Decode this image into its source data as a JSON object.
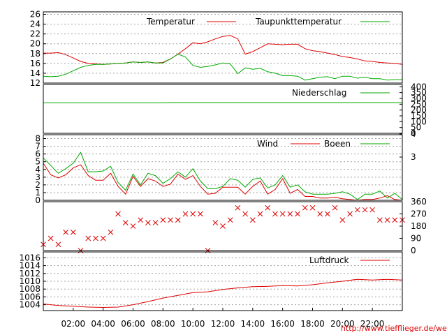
{
  "source_link": "http://www.tiefflieger.de/wetter/",
  "colors": {
    "primary": "#dd0000",
    "secondary": "#00aa00",
    "grid": "#a0a0a0",
    "axis": "#000000",
    "link": "#dd0000"
  },
  "x_ticks": [
    "02:00",
    "04:00",
    "06:00",
    "08:00",
    "10:00",
    "12:00",
    "14:00",
    "16:00",
    "18:00",
    "20:00",
    "22:00"
  ],
  "chart_data": [
    {
      "type": "line",
      "xlim": [
        0,
        24
      ],
      "ylim": [
        12,
        26.5
      ],
      "yticks_left": [
        "12",
        "14",
        "16",
        "18",
        "20",
        "22",
        "24",
        "26"
      ],
      "grid": true,
      "legend": "top-right",
      "x": [
        0,
        0.5,
        1,
        1.5,
        2,
        2.5,
        3,
        3.5,
        4,
        4.5,
        5,
        5.5,
        6,
        6.5,
        7,
        7.5,
        8,
        8.5,
        9,
        9.5,
        10,
        10.5,
        11,
        11.5,
        12,
        12.5,
        13,
        13.5,
        14,
        14.5,
        15,
        15.5,
        16,
        16.5,
        17,
        17.5,
        18,
        18.5,
        19,
        19.5,
        20,
        20.5,
        21,
        21.5,
        22,
        22.5,
        23,
        23.5,
        24
      ],
      "series": [
        {
          "name": "Temperatur",
          "values": [
            18.1,
            18.1,
            18.2,
            17.8,
            17.1,
            16.4,
            16.0,
            15.9,
            15.8,
            15.9,
            16.0,
            16.1,
            16.3,
            16.2,
            16.3,
            16.1,
            16.2,
            16.9,
            17.9,
            19.0,
            20.2,
            20.0,
            20.4,
            21.0,
            21.5,
            21.7,
            21.0,
            17.9,
            18.4,
            19.2,
            20.0,
            19.9,
            19.8,
            19.9,
            19.9,
            19.0,
            18.6,
            18.4,
            18.1,
            17.8,
            17.4,
            17.2,
            16.9,
            16.5,
            16.4,
            16.2,
            16.1,
            16.0,
            15.8
          ]
        },
        {
          "name": "Taupunkttemperatur",
          "values": [
            13.4,
            13.3,
            13.4,
            13.8,
            14.5,
            15.2,
            15.6,
            15.8,
            15.8,
            15.9,
            16.0,
            16.1,
            16.3,
            16.2,
            16.3,
            16.1,
            16.1,
            16.9,
            17.9,
            17.3,
            15.6,
            15.2,
            15.4,
            15.7,
            16.1,
            15.9,
            13.9,
            15.1,
            14.8,
            15.0,
            14.3,
            14.0,
            13.5,
            13.5,
            13.4,
            12.6,
            12.9,
            13.2,
            13.3,
            12.9,
            13.4,
            13.4,
            13.0,
            13.2,
            12.9,
            12.9,
            12.6,
            12.7,
            12.7
          ]
        }
      ]
    },
    {
      "type": "line",
      "xlim": [
        0,
        24
      ],
      "ylim": [
        0,
        420
      ],
      "yticks_right": [
        "0",
        "50",
        "100",
        "150",
        "200",
        "250",
        "300",
        "350",
        "400"
      ],
      "legend": "top-right",
      "x": [
        0,
        8,
        8.5,
        24
      ],
      "series": [
        {
          "name": "Niederschlag",
          "values": [
            262,
            262,
            264,
            264
          ]
        }
      ]
    },
    {
      "type": "line",
      "xlim": [
        0,
        24
      ],
      "ylim": [
        0,
        8.5
      ],
      "yticks_left": [
        "0",
        "1",
        "2",
        "3",
        "4",
        "5",
        "6",
        "7",
        "8"
      ],
      "yticks_right": [
        "3",
        "4"
      ],
      "grid": true,
      "legend": "top-right",
      "x": [
        0,
        0.5,
        1,
        1.5,
        2,
        2.5,
        3,
        3.5,
        4,
        4.5,
        5,
        5.5,
        6,
        6.5,
        7,
        7.5,
        8,
        8.5,
        9,
        9.5,
        10,
        10.5,
        11,
        11.5,
        12,
        12.5,
        13,
        13.5,
        14,
        14.5,
        15,
        15.5,
        16,
        16.5,
        17,
        17.5,
        18,
        18.5,
        19,
        19.5,
        20,
        20.5,
        21,
        21.5,
        22,
        22.5,
        23,
        23.5,
        24
      ],
      "series": [
        {
          "name": "Wind",
          "values": [
            4.8,
            3.3,
            2.9,
            3.3,
            4.2,
            4.6,
            3.2,
            2.6,
            2.6,
            3.5,
            1.8,
            0.8,
            3.1,
            1.8,
            2.8,
            2.5,
            1.8,
            2.1,
            3.4,
            2.7,
            3.2,
            1.8,
            0.8,
            0.9,
            1.7,
            1.7,
            1.7,
            0.8,
            1.8,
            2.5,
            0.8,
            1.4,
            2.8,
            0.9,
            1.4,
            0.5,
            0.5,
            0.3,
            0.3,
            0.4,
            0.2,
            0.1,
            0.0,
            0.1,
            0.1,
            0.3,
            0.6,
            0.1,
            0.0
          ]
        },
        {
          "name": "Boeen",
          "values": [
            5.5,
            4.5,
            3.5,
            4.1,
            4.8,
            6.2,
            3.7,
            3.7,
            3.8,
            4.4,
            2.3,
            1.3,
            3.4,
            2.0,
            3.5,
            3.2,
            2.2,
            2.8,
            3.7,
            3.0,
            4.1,
            2.5,
            1.5,
            1.5,
            1.8,
            2.8,
            2.6,
            1.7,
            2.7,
            2.9,
            1.6,
            2.0,
            3.2,
            1.7,
            2.0,
            1.1,
            0.8,
            0.8,
            0.8,
            0.9,
            1.1,
            0.8,
            0.1,
            0.8,
            0.8,
            1.2,
            0.3,
            0.9,
            0.1
          ]
        }
      ]
    },
    {
      "type": "scatter",
      "xlim": [
        0,
        24
      ],
      "ylim": [
        0,
        360
      ],
      "yticks_right": [
        "0",
        "90",
        "180",
        "270",
        "360"
      ],
      "x": [
        0,
        0.5,
        1,
        1.5,
        2,
        2.5,
        3,
        3.5,
        4,
        4.5,
        5,
        5.5,
        6,
        6.5,
        7,
        7.5,
        8,
        8.5,
        9,
        9.5,
        10,
        10.5,
        11,
        11.5,
        12,
        12.5,
        13,
        13.5,
        14,
        14.5,
        15,
        15.5,
        16,
        16.5,
        17,
        17.5,
        18,
        18.5,
        19,
        19.5,
        20,
        20.5,
        21,
        21.5,
        22,
        22.5,
        23,
        23.5,
        24
      ],
      "series": [
        {
          "values": [
            45,
            90,
            45,
            135,
            135,
            0,
            90,
            90,
            90,
            135,
            270,
            205,
            180,
            225,
            205,
            205,
            225,
            225,
            225,
            270,
            270,
            270,
            0,
            205,
            180,
            225,
            315,
            270,
            225,
            270,
            315,
            270,
            270,
            270,
            270,
            315,
            315,
            270,
            270,
            315,
            225,
            270,
            300,
            300,
            300,
            225,
            225,
            225,
            225
          ]
        }
      ]
    },
    {
      "type": "line",
      "xlim": [
        0,
        24
      ],
      "ylim": [
        1002.5,
        1017.5
      ],
      "yticks_left": [
        "1004",
        "1006",
        "1008",
        "1010",
        "1012",
        "1014",
        "1016"
      ],
      "grid": true,
      "legend": "top-right",
      "x": [
        0,
        1,
        2,
        3,
        4,
        5,
        6,
        7,
        8,
        9,
        10,
        11,
        12,
        13,
        14,
        15,
        16,
        17,
        18,
        19,
        20,
        21,
        22,
        23,
        24
      ],
      "series": [
        {
          "name": "Luftdruck",
          "values": [
            1004.2,
            1003.8,
            1003.6,
            1003.4,
            1003.3,
            1003.4,
            1004.0,
            1004.8,
            1005.7,
            1006.4,
            1007.1,
            1007.3,
            1007.9,
            1008.3,
            1008.6,
            1008.7,
            1008.9,
            1008.8,
            1009.1,
            1009.6,
            1010.0,
            1010.5,
            1010.3,
            1010.5,
            1010.3
          ]
        }
      ]
    }
  ]
}
